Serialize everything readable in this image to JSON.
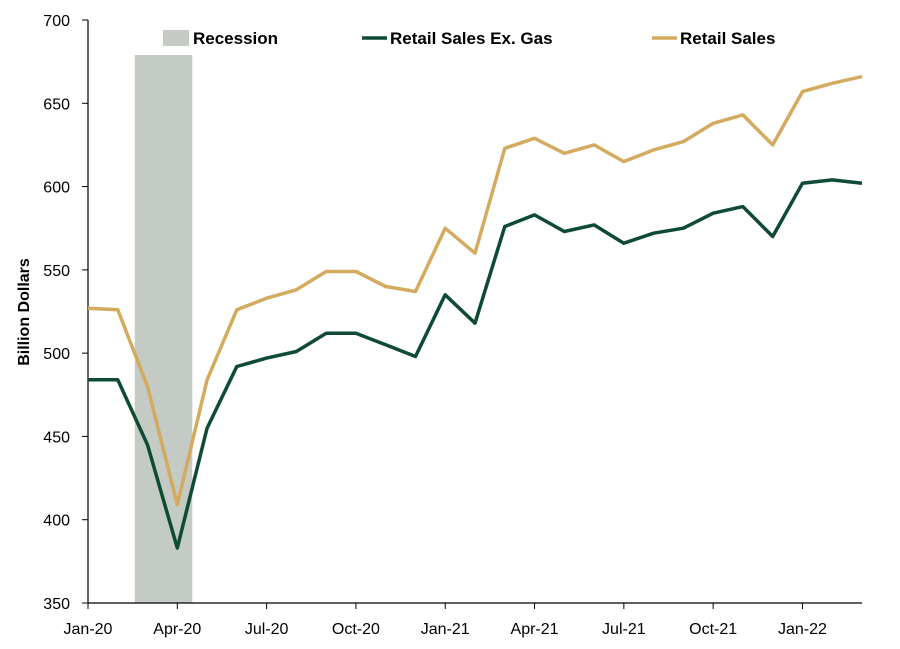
{
  "chart_data": {
    "type": "line",
    "title": "",
    "xlabel": "",
    "ylabel": "Billion Dollars",
    "ylim": [
      350,
      700
    ],
    "yticks": [
      350,
      400,
      450,
      500,
      550,
      600,
      650,
      700
    ],
    "x": [
      "Jan-20",
      "Feb-20",
      "Mar-20",
      "Apr-20",
      "May-20",
      "Jun-20",
      "Jul-20",
      "Aug-20",
      "Sep-20",
      "Oct-20",
      "Nov-20",
      "Dec-20",
      "Jan-21",
      "Feb-21",
      "Mar-21",
      "Apr-21",
      "May-21",
      "Jun-21",
      "Jul-21",
      "Aug-21",
      "Sep-21",
      "Oct-21",
      "Nov-21",
      "Dec-21",
      "Jan-22",
      "Feb-22",
      "Mar-22"
    ],
    "xtick_labels": [
      "Jan-20",
      "Apr-20",
      "Jul-20",
      "Oct-20",
      "Jan-21",
      "Apr-21",
      "Jul-21",
      "Oct-21",
      "Jan-22"
    ],
    "recession": {
      "name": "Recession",
      "start": "Feb-20",
      "end": "Apr-20",
      "color": "#c3cbc4"
    },
    "series": [
      {
        "name": "Retail Sales Ex. Gas",
        "color": "#0f4a33",
        "values": [
          484,
          484,
          445,
          383,
          455,
          492,
          497,
          501,
          512,
          512,
          505,
          498,
          535,
          518,
          576,
          583,
          573,
          577,
          566,
          572,
          575,
          584,
          588,
          570,
          602,
          604,
          602
        ]
      },
      {
        "name": "Retail Sales",
        "color": "#d4aa5f",
        "values": [
          527,
          526,
          480,
          409,
          484,
          526,
          533,
          538,
          549,
          549,
          540,
          537,
          575,
          560,
          623,
          629,
          620,
          625,
          615,
          622,
          627,
          638,
          643,
          625,
          657,
          662,
          666
        ]
      }
    ],
    "legend_position": "top"
  }
}
